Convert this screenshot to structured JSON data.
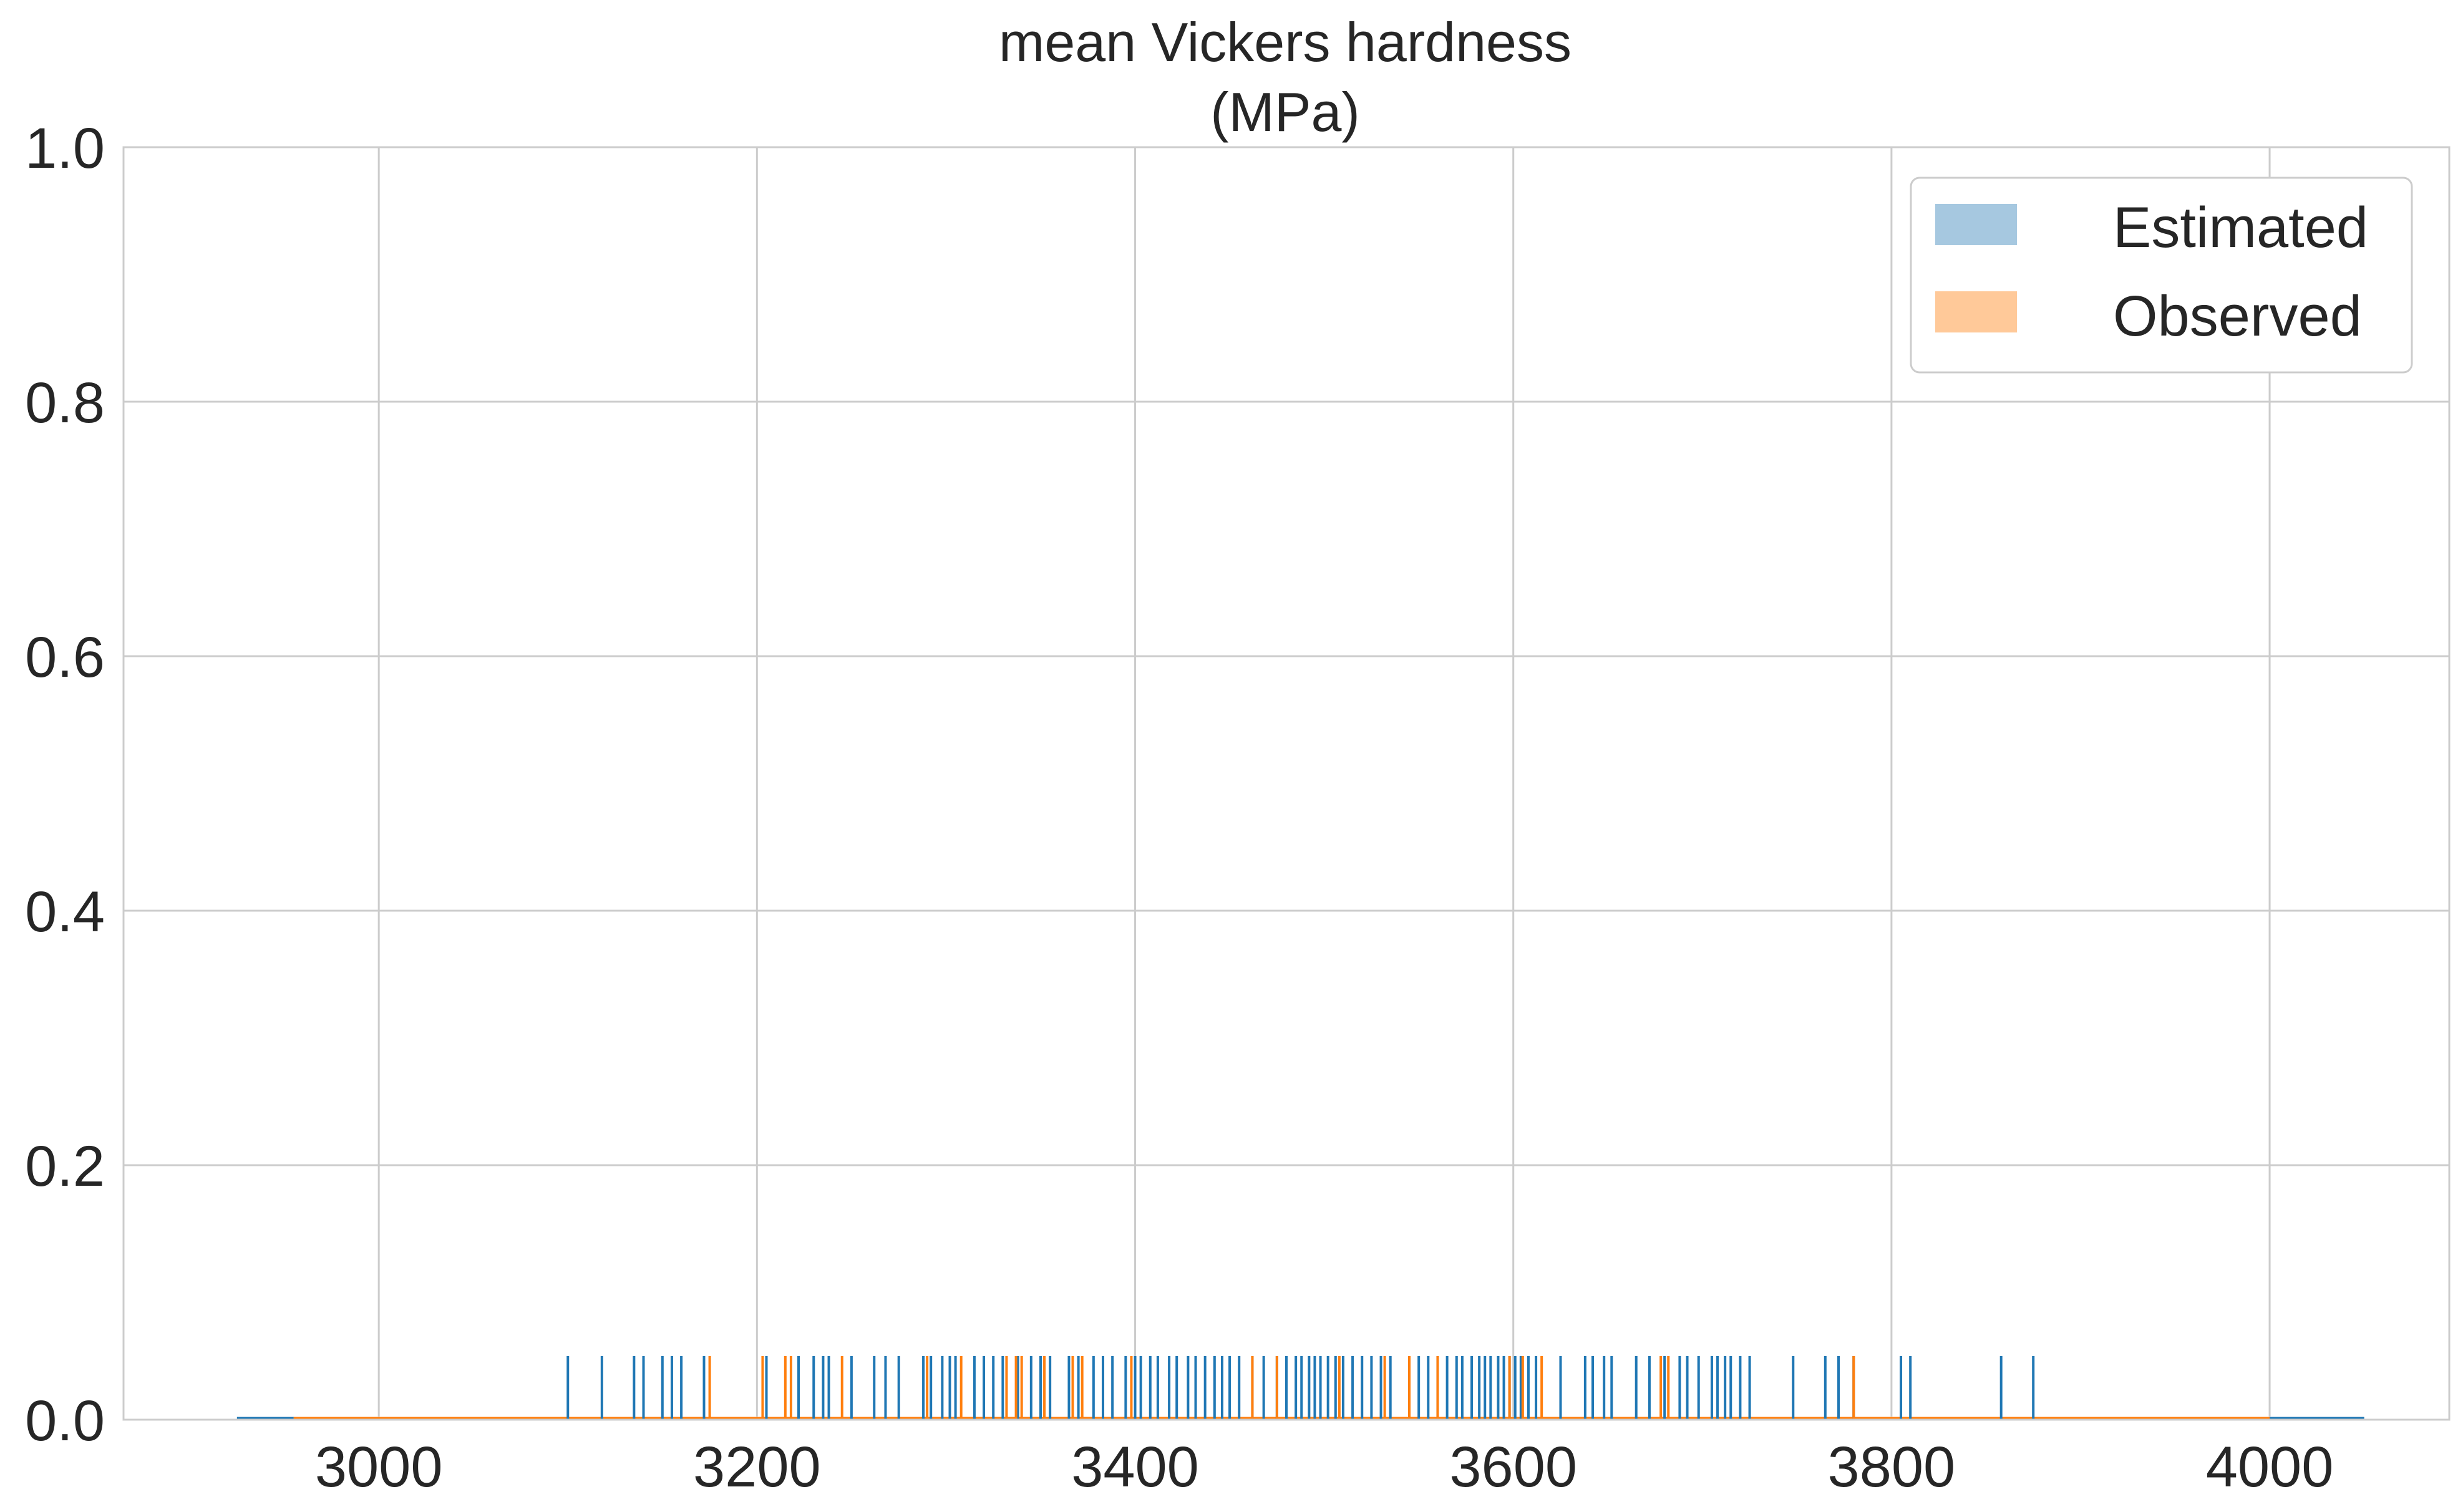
{
  "chart_data": {
    "type": "histogram with rug plot",
    "title": "mean Vickers hardness\n(MPa)",
    "title_lines": [
      "mean Vickers hardness",
      "(MPa)"
    ],
    "xlabel": "",
    "ylabel": "",
    "xlim": [
      2865,
      4095
    ],
    "ylim": [
      0.0,
      1.0
    ],
    "x_ticks": [
      3000,
      3200,
      3400,
      3600,
      3800,
      4000
    ],
    "x_tick_labels": [
      "3000",
      "3200",
      "3400",
      "3600",
      "3800",
      "4000"
    ],
    "y_ticks": [
      0.0,
      0.2,
      0.4,
      0.6,
      0.8,
      1.0
    ],
    "y_tick_labels": [
      "0.0",
      "0.2",
      "0.4",
      "0.6",
      "0.8",
      "1.0"
    ],
    "grid": true,
    "legend_position": "top-right",
    "rug_height": 0.05,
    "series": [
      {
        "name": "Estimated",
        "color": "#1f77b4",
        "legend_color": "#a6c8e0",
        "hist_range": [
          2925,
          4050
        ],
        "rug": [
          3100,
          3118,
          3135,
          3140,
          3150,
          3155,
          3160,
          3172,
          3205,
          3222,
          3230,
          3235,
          3238,
          3250,
          3262,
          3268,
          3275,
          3288,
          3292,
          3298,
          3302,
          3305,
          3315,
          3320,
          3325,
          3330,
          3338,
          3345,
          3350,
          3355,
          3365,
          3370,
          3378,
          3383,
          3388,
          3395,
          3400,
          3403,
          3408,
          3412,
          3418,
          3422,
          3428,
          3432,
          3437,
          3442,
          3446,
          3450,
          3455,
          3462,
          3468,
          3475,
          3480,
          3485,
          3488,
          3492,
          3495,
          3498,
          3502,
          3506,
          3510,
          3515,
          3520,
          3525,
          3530,
          3535,
          3545,
          3550,
          3555,
          3560,
          3565,
          3570,
          3573,
          3578,
          3582,
          3585,
          3588,
          3592,
          3595,
          3598,
          3601,
          3604,
          3608,
          3612,
          3625,
          3638,
          3642,
          3648,
          3652,
          3665,
          3672,
          3680,
          3688,
          3692,
          3698,
          3705,
          3708,
          3712,
          3715,
          3720,
          3725,
          3748,
          3765,
          3772,
          3780,
          3805,
          3810,
          3858,
          3875
        ]
      },
      {
        "name": "Observed",
        "color": "#ff7f0e",
        "legend_color": "#ffc999",
        "hist_range": [
          2955,
          4000
        ],
        "rug": [
          3175,
          3203,
          3215,
          3218,
          3245,
          3290,
          3308,
          3332,
          3337,
          3340,
          3352,
          3367,
          3372,
          3398,
          3462,
          3475,
          3508,
          3532,
          3545,
          3560,
          3598,
          3605,
          3615,
          3678,
          3682,
          3780
        ]
      }
    ]
  }
}
